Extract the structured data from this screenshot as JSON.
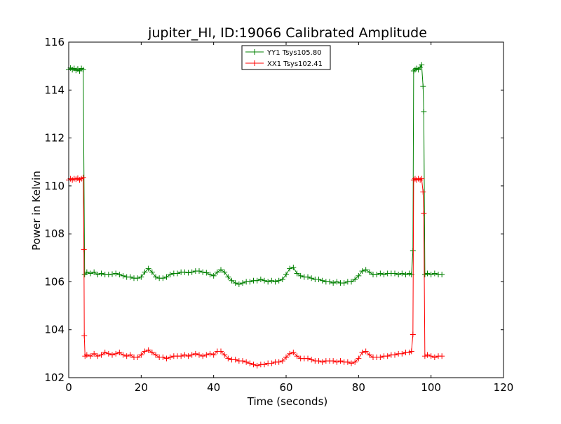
{
  "chart_data": {
    "type": "line",
    "title": "jupiter_HI, ID:19066 Calibrated Amplitude",
    "xlabel": "Time (seconds)",
    "ylabel": "Power in Kelvin",
    "xlim": [
      0,
      120
    ],
    "ylim": [
      102,
      116
    ],
    "xticks": [
      0,
      20,
      40,
      60,
      80,
      100,
      120
    ],
    "yticks": [
      102,
      104,
      106,
      108,
      110,
      112,
      114,
      116
    ],
    "x_tick_labels": [
      "0",
      "20",
      "40",
      "60",
      "80",
      "100",
      "120"
    ],
    "y_tick_labels": [
      "102",
      "104",
      "106",
      "108",
      "110",
      "112",
      "114",
      "116"
    ],
    "grid": false,
    "legend_position": "upper center",
    "marker": "+",
    "series": [
      {
        "name": "YY1 Tsys105.80",
        "color": "#008000",
        "points": [
          [
            0.0,
            114.85
          ],
          [
            0.5,
            114.92
          ],
          [
            1.0,
            114.85
          ],
          [
            1.5,
            114.9
          ],
          [
            2.0,
            114.82
          ],
          [
            2.5,
            114.88
          ],
          [
            3.0,
            114.8
          ],
          [
            3.5,
            114.9
          ],
          [
            4.0,
            114.85
          ],
          [
            4.4,
            106.3
          ],
          [
            5,
            106.4
          ],
          [
            6,
            106.35
          ],
          [
            7,
            106.4
          ],
          [
            8,
            106.3
          ],
          [
            9,
            106.35
          ],
          [
            10,
            106.3
          ],
          [
            11,
            106.3
          ],
          [
            12,
            106.32
          ],
          [
            13,
            106.35
          ],
          [
            14,
            106.3
          ],
          [
            15,
            106.25
          ],
          [
            16,
            106.2
          ],
          [
            17,
            106.2
          ],
          [
            18,
            106.15
          ],
          [
            19,
            106.15
          ],
          [
            20,
            106.2
          ],
          [
            21,
            106.4
          ],
          [
            22,
            106.55
          ],
          [
            23,
            106.4
          ],
          [
            24,
            106.2
          ],
          [
            25,
            106.15
          ],
          [
            26,
            106.15
          ],
          [
            27,
            106.2
          ],
          [
            28,
            106.3
          ],
          [
            29,
            106.35
          ],
          [
            30,
            106.35
          ],
          [
            31,
            106.4
          ],
          [
            32,
            106.4
          ],
          [
            33,
            106.38
          ],
          [
            34,
            106.4
          ],
          [
            35,
            106.45
          ],
          [
            36,
            106.45
          ],
          [
            37,
            106.4
          ],
          [
            38,
            106.38
          ],
          [
            39,
            106.3
          ],
          [
            40,
            106.25
          ],
          [
            41,
            106.4
          ],
          [
            42,
            106.5
          ],
          [
            43,
            106.4
          ],
          [
            44,
            106.2
          ],
          [
            45,
            106.05
          ],
          [
            46,
            105.95
          ],
          [
            47,
            105.9
          ],
          [
            48,
            105.95
          ],
          [
            49,
            106.0
          ],
          [
            50,
            106.0
          ],
          [
            51,
            106.05
          ],
          [
            52,
            106.05
          ],
          [
            53,
            106.1
          ],
          [
            54,
            106.05
          ],
          [
            55,
            106.0
          ],
          [
            56,
            106.05
          ],
          [
            57,
            106.0
          ],
          [
            58,
            106.05
          ],
          [
            59,
            106.1
          ],
          [
            60,
            106.3
          ],
          [
            61,
            106.55
          ],
          [
            62,
            106.6
          ],
          [
            63,
            106.35
          ],
          [
            64,
            106.25
          ],
          [
            65,
            106.2
          ],
          [
            66,
            106.2
          ],
          [
            67,
            106.15
          ],
          [
            68,
            106.1
          ],
          [
            69,
            106.1
          ],
          [
            70,
            106.05
          ],
          [
            71,
            106.0
          ],
          [
            72,
            106.0
          ],
          [
            73,
            105.95
          ],
          [
            74,
            106.0
          ],
          [
            75,
            105.95
          ],
          [
            76,
            105.95
          ],
          [
            77,
            106.0
          ],
          [
            78,
            106.0
          ],
          [
            79,
            106.1
          ],
          [
            80,
            106.25
          ],
          [
            81,
            106.45
          ],
          [
            82,
            106.5
          ],
          [
            83,
            106.4
          ],
          [
            84,
            106.3
          ],
          [
            85,
            106.3
          ],
          [
            86,
            106.35
          ],
          [
            87,
            106.3
          ],
          [
            88,
            106.35
          ],
          [
            89,
            106.35
          ],
          [
            90,
            106.35
          ],
          [
            91,
            106.3
          ],
          [
            92,
            106.35
          ],
          [
            93,
            106.3
          ],
          [
            94,
            106.35
          ],
          [
            94.6,
            106.3
          ],
          [
            95.0,
            107.3
          ],
          [
            95.2,
            114.8
          ],
          [
            95.6,
            114.85
          ],
          [
            96.0,
            114.9
          ],
          [
            96.5,
            114.85
          ],
          [
            97.0,
            114.95
          ],
          [
            97.4,
            115.05
          ],
          [
            97.8,
            114.15
          ],
          [
            98.0,
            113.1
          ],
          [
            98.3,
            106.3
          ],
          [
            99,
            106.35
          ],
          [
            100,
            106.3
          ],
          [
            101,
            106.35
          ],
          [
            102,
            106.3
          ],
          [
            103,
            106.3
          ]
        ]
      },
      {
        "name": "XX1 Tsys102.41",
        "color": "#ff0000",
        "points": [
          [
            0.0,
            110.25
          ],
          [
            0.5,
            110.3
          ],
          [
            1.0,
            110.25
          ],
          [
            1.5,
            110.3
          ],
          [
            2.0,
            110.28
          ],
          [
            2.5,
            110.32
          ],
          [
            3.0,
            110.25
          ],
          [
            3.5,
            110.3
          ],
          [
            4.0,
            110.35
          ],
          [
            4.2,
            107.35
          ],
          [
            4.3,
            103.75
          ],
          [
            4.5,
            102.9
          ],
          [
            5,
            102.95
          ],
          [
            6,
            102.9
          ],
          [
            7,
            103.0
          ],
          [
            8,
            102.9
          ],
          [
            9,
            102.95
          ],
          [
            10,
            103.05
          ],
          [
            11,
            103.0
          ],
          [
            12,
            102.95
          ],
          [
            13,
            103.0
          ],
          [
            14,
            103.05
          ],
          [
            15,
            102.95
          ],
          [
            16,
            102.9
          ],
          [
            17,
            102.95
          ],
          [
            18,
            102.85
          ],
          [
            19,
            102.85
          ],
          [
            20,
            102.95
          ],
          [
            21,
            103.1
          ],
          [
            22,
            103.15
          ],
          [
            23,
            103.05
          ],
          [
            24,
            102.95
          ],
          [
            25,
            102.85
          ],
          [
            26,
            102.85
          ],
          [
            27,
            102.8
          ],
          [
            28,
            102.85
          ],
          [
            29,
            102.9
          ],
          [
            30,
            102.9
          ],
          [
            31,
            102.9
          ],
          [
            32,
            102.95
          ],
          [
            33,
            102.9
          ],
          [
            34,
            102.95
          ],
          [
            35,
            103.0
          ],
          [
            36,
            102.95
          ],
          [
            37,
            102.9
          ],
          [
            38,
            102.95
          ],
          [
            39,
            103.0
          ],
          [
            40,
            102.95
          ],
          [
            41,
            103.1
          ],
          [
            42,
            103.1
          ],
          [
            43,
            102.95
          ],
          [
            44,
            102.8
          ],
          [
            45,
            102.75
          ],
          [
            46,
            102.75
          ],
          [
            47,
            102.7
          ],
          [
            48,
            102.7
          ],
          [
            49,
            102.65
          ],
          [
            50,
            102.6
          ],
          [
            51,
            102.55
          ],
          [
            52,
            102.5
          ],
          [
            53,
            102.55
          ],
          [
            54,
            102.55
          ],
          [
            55,
            102.6
          ],
          [
            56,
            102.6
          ],
          [
            57,
            102.65
          ],
          [
            58,
            102.65
          ],
          [
            59,
            102.7
          ],
          [
            60,
            102.85
          ],
          [
            61,
            103.0
          ],
          [
            62,
            103.05
          ],
          [
            63,
            102.9
          ],
          [
            64,
            102.8
          ],
          [
            65,
            102.8
          ],
          [
            66,
            102.8
          ],
          [
            67,
            102.75
          ],
          [
            68,
            102.7
          ],
          [
            69,
            102.7
          ],
          [
            70,
            102.65
          ],
          [
            71,
            102.7
          ],
          [
            72,
            102.7
          ],
          [
            73,
            102.7
          ],
          [
            74,
            102.65
          ],
          [
            75,
            102.7
          ],
          [
            76,
            102.65
          ],
          [
            77,
            102.65
          ],
          [
            78,
            102.6
          ],
          [
            79,
            102.65
          ],
          [
            80,
            102.8
          ],
          [
            81,
            103.05
          ],
          [
            82,
            103.1
          ],
          [
            83,
            102.95
          ],
          [
            84,
            102.85
          ],
          [
            85,
            102.85
          ],
          [
            86,
            102.85
          ],
          [
            87,
            102.9
          ],
          [
            88,
            102.9
          ],
          [
            89,
            102.95
          ],
          [
            90,
            102.95
          ],
          [
            91,
            103.0
          ],
          [
            92,
            103.0
          ],
          [
            93,
            103.05
          ],
          [
            94,
            103.05
          ],
          [
            94.6,
            103.1
          ],
          [
            95.0,
            103.8
          ],
          [
            95.2,
            110.25
          ],
          [
            95.6,
            110.3
          ],
          [
            96.0,
            110.25
          ],
          [
            96.5,
            110.3
          ],
          [
            97.0,
            110.25
          ],
          [
            97.4,
            110.3
          ],
          [
            97.8,
            109.75
          ],
          [
            98.0,
            108.85
          ],
          [
            98.3,
            102.9
          ],
          [
            99,
            102.95
          ],
          [
            100,
            102.9
          ],
          [
            101,
            102.85
          ],
          [
            102,
            102.9
          ],
          [
            103,
            102.9
          ]
        ]
      }
    ]
  }
}
